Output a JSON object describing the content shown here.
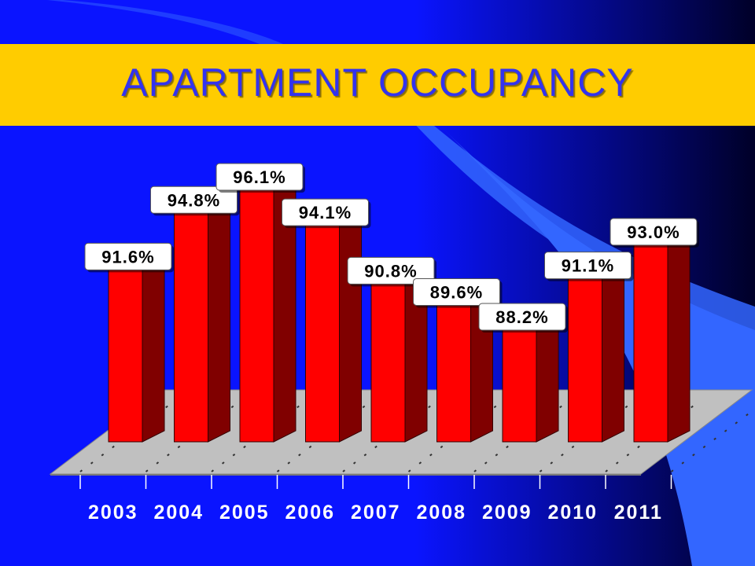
{
  "colors": {
    "background_left": "#0a14ff",
    "background_right": "#000028",
    "accent_shape": "#3366ff",
    "title_band": "#ffcc00",
    "title_text": "#3333ee",
    "bar_front": "#ff0000",
    "bar_side": "#800000",
    "bar_top": "#cc0000",
    "floor": "#c0c0c0",
    "label_box": "#ffffff",
    "label_text": "#000000",
    "tick_text": "#ffffff"
  },
  "chart_data": {
    "type": "bar",
    "title": "APARTMENT OCCUPANCY",
    "categories": [
      "2003",
      "2004",
      "2005",
      "2006",
      "2007",
      "2008",
      "2009",
      "2010",
      "2011"
    ],
    "values": [
      91.6,
      94.8,
      96.1,
      94.1,
      90.8,
      89.6,
      88.2,
      91.1,
      93.0
    ],
    "data_labels": [
      "91.6%",
      "94.8%",
      "96.1%",
      "94.1%",
      "90.8%",
      "89.6%",
      "88.2%",
      "91.1%",
      "93.0%"
    ],
    "xlabel": "",
    "ylabel": "",
    "grid": false,
    "legend": "none",
    "style": "3d"
  }
}
